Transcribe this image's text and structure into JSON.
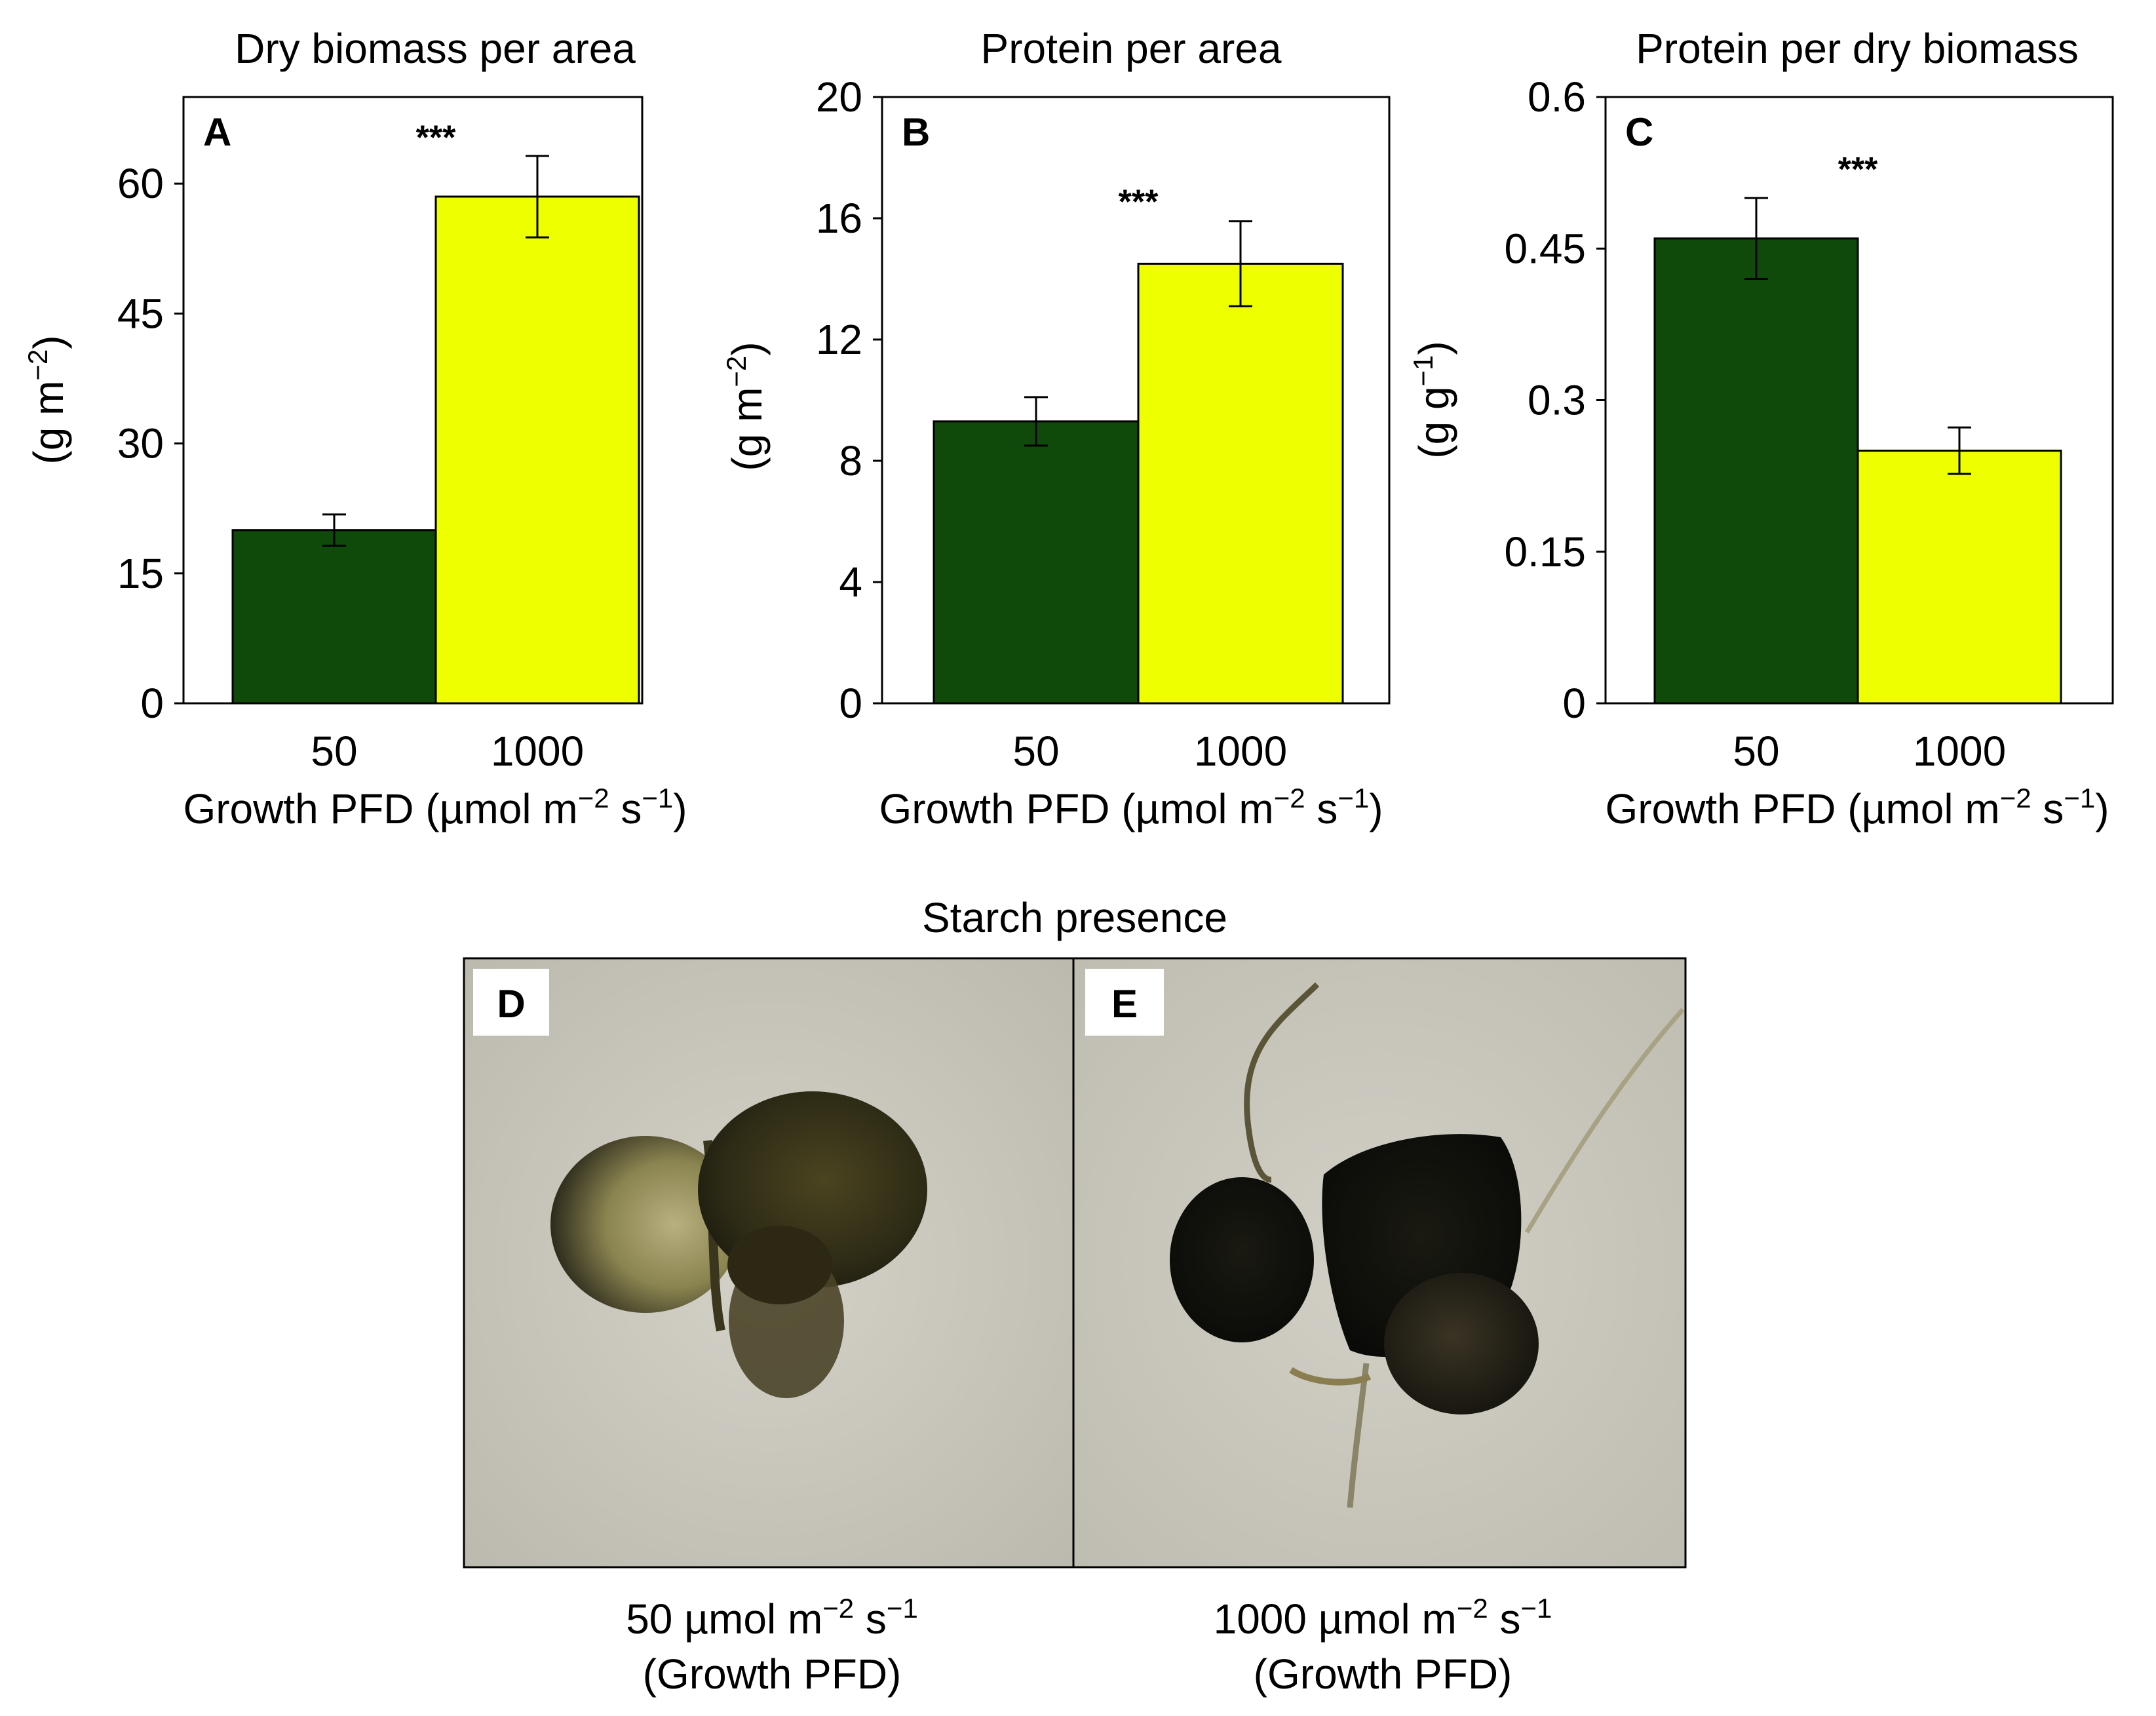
{
  "colors": {
    "low_light": "#0f4a0a",
    "high_light": "#eeff00",
    "photo_bg": "#c8c6bb"
  },
  "chart_data": [
    {
      "type": "bar",
      "panel": "A",
      "title": "Dry biomass per area",
      "ylabel_base": "(g m",
      "ylabel_sup": "−2",
      "ylabel_end": ")",
      "xlabel": "Growth PFD (µmol m−2 s−1)",
      "categories": [
        "50",
        "1000"
      ],
      "values": [
        20.0,
        58.5
      ],
      "errors": [
        1.8,
        4.7
      ],
      "ylim": [
        0,
        70
      ],
      "yticks": [
        "0",
        "15",
        "30",
        "45",
        "60"
      ],
      "ytick_values": [
        0,
        15,
        30,
        45,
        60
      ],
      "significance": "***",
      "sig_y": 65.5
    },
    {
      "type": "bar",
      "panel": "B",
      "title": "Protein per area",
      "ylabel_base": "(g m",
      "ylabel_sup": "−2",
      "ylabel_end": ")",
      "xlabel": "Growth PFD (µmol m−2 s−1)",
      "categories": [
        "50",
        "1000"
      ],
      "values": [
        9.3,
        14.5
      ],
      "errors": [
        0.8,
        1.4
      ],
      "ylim": [
        0,
        20
      ],
      "yticks": [
        "0",
        "4",
        "8",
        "12",
        "16",
        "20"
      ],
      "ytick_values": [
        0,
        4,
        8,
        12,
        16,
        20
      ],
      "significance": "***",
      "sig_y": 16.6
    },
    {
      "type": "bar",
      "panel": "C",
      "title": "Protein per dry biomass",
      "ylabel_base": "(g g",
      "ylabel_sup": "−1",
      "ylabel_end": ")",
      "xlabel": "Growth PFD (µmol m−2 s−1)",
      "categories": [
        "50",
        "1000"
      ],
      "values": [
        0.46,
        0.25
      ],
      "errors": [
        0.04,
        0.023
      ],
      "ylim": [
        0,
        0.6
      ],
      "yticks": [
        "0",
        "0.15",
        "0.3",
        "0.45",
        "0.6"
      ],
      "ytick_values": [
        0,
        0.15,
        0.3,
        0.45,
        0.6
      ],
      "significance": "***",
      "sig_y": 0.53
    }
  ],
  "starch": {
    "title": "Starch presence",
    "panels": [
      {
        "letter": "D",
        "caption_line1": "50 µmol m−2 s−1",
        "caption_line2": "(Growth PFD)"
      },
      {
        "letter": "E",
        "caption_line1": "1000 µmol m−2 s−1",
        "caption_line2": "(Growth PFD)"
      }
    ]
  }
}
